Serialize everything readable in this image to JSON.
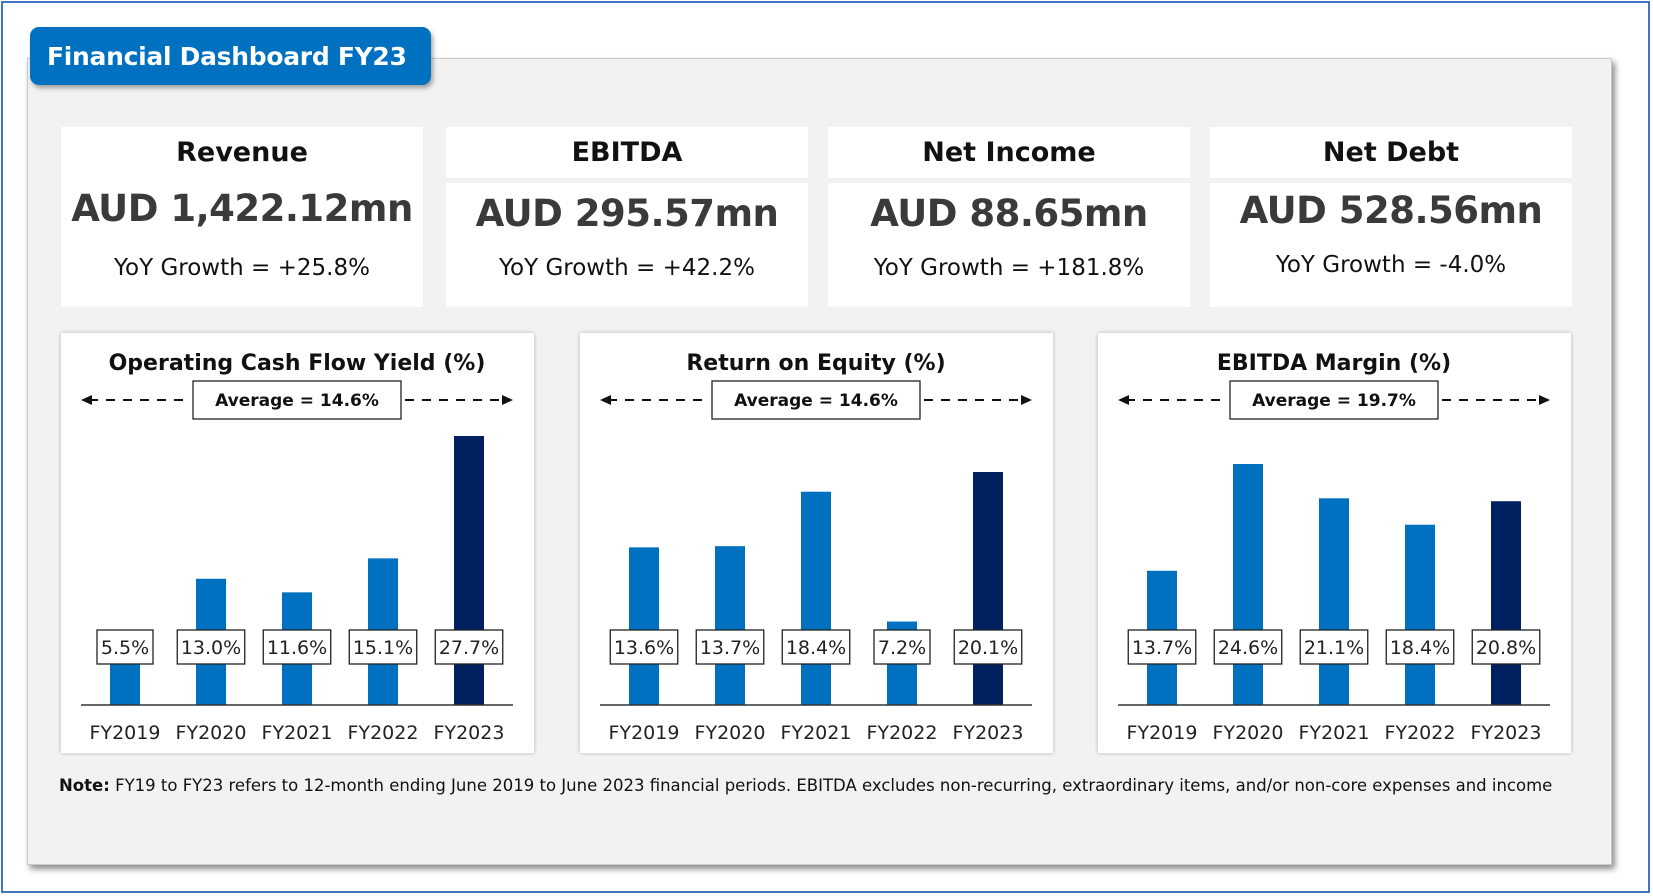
{
  "header": {
    "title": "Financial Dashboard FY23"
  },
  "colors": {
    "accent": "#0070c0",
    "highlight": "#002060",
    "panel": "#f2f2f2",
    "frame": "#4472c4"
  },
  "kpis": [
    {
      "label": "Revenue",
      "value": "AUD 1,422.12mn",
      "growth": "YoY Growth = +25.8%"
    },
    {
      "label": "EBITDA",
      "value": "AUD 295.57mn",
      "growth": "YoY Growth = +42.2%"
    },
    {
      "label": "Net Income",
      "value": "AUD 88.65mn",
      "growth": "YoY Growth = +181.8%"
    },
    {
      "label": "Net Debt",
      "value": "AUD 528.56mn",
      "growth": "YoY Growth = -4.0%"
    }
  ],
  "chart_data": [
    {
      "type": "bar",
      "title": "Operating Cash Flow Yield (%)",
      "average_label": "Average = 14.6%",
      "categories": [
        "FY2019",
        "FY2020",
        "FY2021",
        "FY2022",
        "FY2023"
      ],
      "values": [
        5.5,
        13.0,
        11.6,
        15.1,
        27.7
      ],
      "value_labels": [
        "5.5%",
        "13.0%",
        "11.6%",
        "15.1%",
        "27.7%"
      ],
      "highlight_index": 4,
      "xlabel": "",
      "ylabel": "",
      "ylim": [
        0,
        27.7
      ],
      "grid": false
    },
    {
      "type": "bar",
      "title": "Return on Equity (%)",
      "average_label": "Average = 14.6%",
      "categories": [
        "FY2019",
        "FY2020",
        "FY2021",
        "FY2022",
        "FY2023"
      ],
      "values": [
        13.6,
        13.7,
        18.4,
        7.2,
        20.1
      ],
      "value_labels": [
        "13.6%",
        "13.7%",
        "18.4%",
        "7.2%",
        "20.1%"
      ],
      "highlight_index": 4,
      "xlabel": "",
      "ylabel": "",
      "ylim": [
        0,
        20.1
      ],
      "grid": false
    },
    {
      "type": "bar",
      "title": "EBITDA Margin (%)",
      "average_label": "Average = 19.7%",
      "categories": [
        "FY2019",
        "FY2020",
        "FY2021",
        "FY2022",
        "FY2023"
      ],
      "values": [
        13.7,
        24.6,
        21.1,
        18.4,
        20.8
      ],
      "value_labels": [
        "13.7%",
        "24.6%",
        "21.1%",
        "18.4%",
        "20.8%"
      ],
      "highlight_index": 4,
      "xlabel": "",
      "ylabel": "",
      "ylim": [
        0,
        24.6
      ],
      "grid": false
    }
  ],
  "note": {
    "label": "Note:",
    "text": " FY19 to FY23 refers to 12-month ending June 2019 to June 2023 financial periods. EBITDA excludes non-recurring, extraordinary items, and/or non-core expenses and income"
  }
}
